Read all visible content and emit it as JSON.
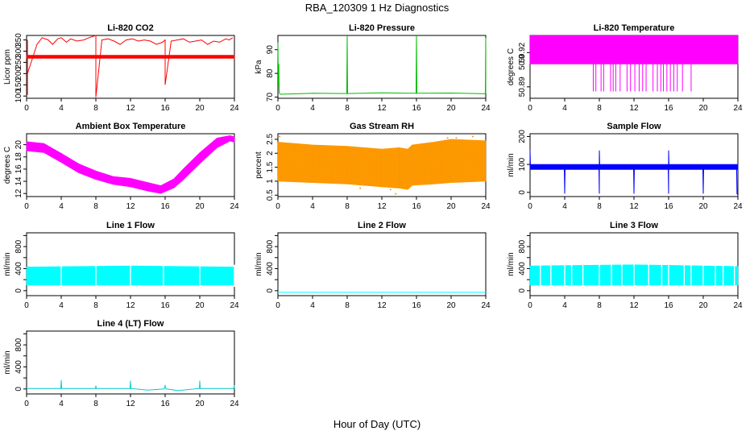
{
  "figure": {
    "title": "RBA_120309  1 Hz Diagnostics",
    "xlabel": "Hour of Day (UTC)"
  },
  "chart_data": [
    {
      "type": "line",
      "title": "Li-820 CO2",
      "ylabel": "Licor ppm",
      "color": "#ff0000",
      "xlim": [
        0,
        24
      ],
      "ylim": [
        90,
        370
      ],
      "xticks": [
        0,
        4,
        8,
        12,
        16,
        20,
        24
      ],
      "yticks": [
        100,
        150,
        200,
        250,
        300,
        350
      ],
      "band": {
        "x": [
          0,
          24
        ],
        "low": [
          268,
          268
        ],
        "high": [
          282,
          282
        ]
      },
      "series": [
        {
          "x": [
            0.1,
            0.1,
            0.1,
            1.2,
            1.8,
            2.5,
            3.0,
            3.6,
            4.0,
            4.6,
            5.1,
            5.8,
            6.6,
            7.2,
            8.0,
            8.0,
            8.7,
            9.4,
            10.1,
            10.8,
            11.5,
            12.2,
            12.9,
            13.6,
            14.3,
            15.0,
            15.7,
            16.0,
            16.0,
            16.7,
            17.4,
            18.1,
            18.8,
            19.5,
            20.2,
            20.9,
            21.6,
            22.3,
            23.0,
            23.4,
            23.8
          ],
          "y": [
            105,
            350,
            200,
            330,
            360,
            350,
            330,
            355,
            360,
            340,
            355,
            345,
            350,
            360,
            370,
            95,
            350,
            355,
            345,
            330,
            350,
            355,
            345,
            350,
            345,
            330,
            340,
            350,
            150,
            345,
            350,
            355,
            340,
            345,
            350,
            330,
            345,
            340,
            355,
            350,
            360
          ]
        }
      ]
    },
    {
      "type": "line",
      "title": "Li-820 Pressure",
      "ylabel": "kPa",
      "color": "#00bb00",
      "xlim": [
        0,
        24
      ],
      "ylim": [
        69.5,
        96
      ],
      "xticks": [
        0,
        4,
        8,
        12,
        16,
        20,
        24
      ],
      "yticks": [
        70,
        80,
        90
      ],
      "series": [
        {
          "x": [
            0,
            0.05,
            0.1,
            0.15,
            0.2,
            0.3,
            1,
            4,
            7.95,
            8,
            8.05,
            12,
            15.95,
            16,
            16.05,
            20,
            23.95,
            24,
            24
          ],
          "y": [
            93,
            75,
            84,
            72,
            71.5,
            71.2,
            71.3,
            71.6,
            71.5,
            96,
            71.5,
            71.8,
            71.6,
            96,
            71.6,
            71.7,
            71.4,
            95,
            71.5
          ]
        }
      ]
    },
    {
      "type": "area",
      "title": "Li-820 Temperature",
      "ylabel": "degrees C",
      "color": "#ff00ff",
      "xlim": [
        0,
        24
      ],
      "ylim": [
        50.88,
        50.935
      ],
      "xticks": [
        0,
        4,
        8,
        12,
        16,
        20,
        24
      ],
      "yticks": [
        50.89,
        50.92
      ],
      "ytick_labels": [
        "50.89",
        "50.92"
      ],
      "extra_ytick_label": "50.9",
      "band": {
        "x": [
          0,
          24
        ],
        "low": [
          50.91,
          50.91
        ],
        "high": [
          50.935,
          50.935
        ]
      },
      "drops_x": [
        7.3,
        7.6,
        8.2,
        8.5,
        9.3,
        9.6,
        9.9,
        10.4,
        11.2,
        11.6,
        12.1,
        12.6,
        13.0,
        13.4,
        14.2,
        14.7,
        15.1,
        15.4,
        15.8,
        16.2,
        16.6,
        17.0,
        17.6,
        18.6
      ],
      "drops_low": 50.886
    },
    {
      "type": "line",
      "title": "Ambient Box Temperature",
      "ylabel": "degrees C",
      "color": "#ff00ff",
      "xlim": [
        0,
        24
      ],
      "ylim": [
        11.5,
        21.8
      ],
      "xticks": [
        0,
        4,
        8,
        12,
        16,
        20,
        24
      ],
      "yticks": [
        12,
        14,
        16,
        18,
        20
      ],
      "band": {
        "x": [
          0,
          2,
          4,
          6,
          8,
          10,
          12,
          14,
          15.5,
          17,
          18,
          20,
          22,
          23.5,
          24
        ],
        "low": [
          19.0,
          18.7,
          17.1,
          15.4,
          14.3,
          13.5,
          13.1,
          12.4,
          12.0,
          12.9,
          14.1,
          16.9,
          19.5,
          20.6,
          20.4
        ],
        "high": [
          20.5,
          20.2,
          18.6,
          16.9,
          15.7,
          14.8,
          14.5,
          13.8,
          13.3,
          14.4,
          15.9,
          18.7,
          21.1,
          21.5,
          21.3
        ]
      }
    },
    {
      "type": "scatter",
      "title": "Gas Stream RH",
      "ylabel": "percent",
      "color": "#ff9900",
      "xlim": [
        0,
        24
      ],
      "ylim": [
        0.45,
        2.7
      ],
      "xticks": [
        0,
        4,
        8,
        12,
        16,
        20,
        24
      ],
      "yticks": [
        0.5,
        1.0,
        1.5,
        2.0,
        2.5
      ],
      "band": {
        "x": [
          0,
          4,
          8,
          12,
          14,
          15,
          15.5,
          18,
          20,
          24
        ],
        "low": [
          1.0,
          0.95,
          0.9,
          0.8,
          0.75,
          0.7,
          0.85,
          0.9,
          0.95,
          1.0
        ],
        "high": [
          2.4,
          2.3,
          2.25,
          2.15,
          2.2,
          2.15,
          2.3,
          2.4,
          2.5,
          2.45
        ]
      },
      "outliers": {
        "x": [
          0.2,
          6.2,
          9.5,
          13.0,
          13.6,
          19.6,
          20.6,
          22.5
        ],
        "y": [
          2.6,
          2.2,
          0.75,
          0.7,
          0.55,
          2.55,
          2.55,
          2.6
        ]
      }
    },
    {
      "type": "line",
      "title": "Sample Flow",
      "ylabel": "ml/min",
      "color": "#0000ff",
      "xlim": [
        0,
        24
      ],
      "ylim": [
        -15,
        210
      ],
      "xticks": [
        0,
        4,
        8,
        12,
        16,
        20,
        24
      ],
      "yticks": [
        0,
        100,
        200
      ],
      "band": {
        "x": [
          0,
          24
        ],
        "low": [
          82,
          82
        ],
        "high": [
          100,
          100
        ]
      },
      "series": [
        {
          "x": [
            0,
            0.05,
            0.1,
            3.95,
            4,
            4.05,
            7.95,
            8,
            8,
            8.05,
            11.95,
            12,
            12.05,
            15.95,
            16,
            16,
            16.05,
            19.95,
            20,
            20.05,
            23.85,
            23.9,
            24
          ],
          "y": [
            150,
            90,
            95,
            92,
            -5,
            92,
            92,
            -5,
            150,
            92,
            92,
            -5,
            92,
            92,
            -5,
            150,
            92,
            92,
            -5,
            92,
            90,
            -5,
            -8
          ]
        }
      ]
    },
    {
      "type": "area",
      "title": "Line 1 Flow",
      "ylabel": "ml/min",
      "color": "#00ffff",
      "xlim": [
        0,
        24
      ],
      "ylim": [
        -90,
        1050
      ],
      "xticks": [
        0,
        4,
        8,
        12,
        16,
        20,
        24
      ],
      "yticks": [
        0,
        200,
        400,
        600,
        800,
        1000
      ],
      "ytick_labels": [
        "0",
        "400",
        "800"
      ],
      "ytick_label_values": [
        0,
        400,
        800
      ],
      "band": {
        "x": [
          0,
          12,
          24
        ],
        "low": [
          100,
          100,
          100
        ],
        "high": [
          430,
          450,
          430
        ]
      },
      "gaps_x": [
        4,
        8,
        12,
        15.8,
        20,
        24
      ]
    },
    {
      "type": "line",
      "title": "Line 2 Flow",
      "ylabel": "ml/min",
      "color": "#00ffff",
      "xlim": [
        0,
        24
      ],
      "ylim": [
        -90,
        1050
      ],
      "xticks": [
        0,
        4,
        8,
        12,
        16,
        20,
        24
      ],
      "yticks": [
        0,
        200,
        400,
        600,
        800,
        1000
      ],
      "ytick_labels": [
        "0",
        "400",
        "800"
      ],
      "ytick_label_values": [
        0,
        400,
        800
      ],
      "series": [
        {
          "x": [
            0,
            24
          ],
          "y": [
            -30,
            -30
          ]
        }
      ]
    },
    {
      "type": "area",
      "title": "Line 3 Flow",
      "ylabel": "ml/min",
      "color": "#00ffff",
      "xlim": [
        0,
        24
      ],
      "ylim": [
        -90,
        1050
      ],
      "xticks": [
        0,
        4,
        8,
        12,
        16,
        20,
        24
      ],
      "yticks": [
        0,
        200,
        400,
        600,
        800,
        1000
      ],
      "ytick_labels": [
        "0",
        "400",
        "800"
      ],
      "ytick_label_values": [
        0,
        400,
        800
      ],
      "band": {
        "x": [
          0,
          12,
          24
        ],
        "low": [
          100,
          100,
          100
        ],
        "high": [
          450,
          470,
          440
        ]
      },
      "gaps_x": [
        1.2,
        2.4,
        4,
        4.8,
        6.1,
        8,
        9.4,
        10.6,
        12,
        13.7,
        15.2,
        16,
        17.8,
        18.6,
        20,
        21.4,
        22.3,
        23.6
      ]
    },
    {
      "type": "line",
      "title": "Line 4 (LT) Flow",
      "ylabel": "ml/min",
      "color": "#00cccc",
      "xlim": [
        0,
        24
      ],
      "ylim": [
        -90,
        1050
      ],
      "xticks": [
        0,
        4,
        8,
        12,
        16,
        20,
        24
      ],
      "yticks": [
        0,
        200,
        400,
        600,
        800,
        1000
      ],
      "ytick_labels": [
        "0",
        "400",
        "800"
      ],
      "ytick_label_values": [
        0,
        400,
        800
      ],
      "series": [
        {
          "x": [
            0,
            3.95,
            4,
            4.05,
            7.95,
            8,
            8.05,
            11.95,
            12,
            12.05,
            14,
            15.9,
            16,
            16.1,
            17.5,
            19.95,
            20,
            20.05,
            23.9,
            24,
            24
          ],
          "y": [
            10,
            10,
            160,
            10,
            10,
            60,
            10,
            10,
            150,
            10,
            -20,
            0,
            60,
            0,
            -30,
            10,
            150,
            10,
            10,
            70,
            10
          ]
        }
      ]
    }
  ]
}
